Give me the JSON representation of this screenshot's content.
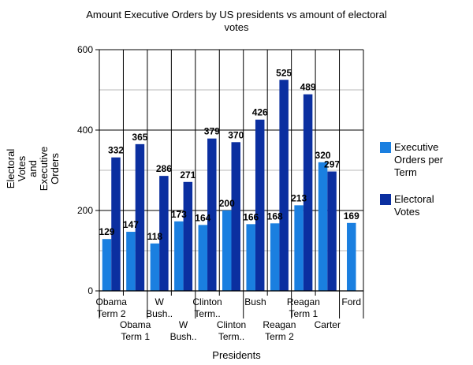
{
  "chart_data": {
    "type": "bar",
    "title_lines": [
      "Amount Executive Orders by US presidents vs amount of electoral",
      "votes"
    ],
    "xlabel": "Presidents",
    "ylabel_lines": [
      "Electoral",
      "Votes",
      "and",
      "Executive",
      "Orders"
    ],
    "ylim": [
      0,
      600
    ],
    "yticks": [
      "0",
      "200",
      "400",
      "600"
    ],
    "grid": true,
    "legend_position": "right",
    "categories": [
      [
        "Obama",
        "Term 2"
      ],
      [
        "Obama",
        "Term 1"
      ],
      [
        "W",
        "Bush.."
      ],
      [
        "W",
        "Bush.."
      ],
      [
        "Clinton",
        "Term.."
      ],
      [
        "Clinton",
        "Term.."
      ],
      [
        "Bush"
      ],
      [
        "Reagan",
        "Term 2"
      ],
      [
        "Reagan",
        "Term 1"
      ],
      [
        "Carter"
      ],
      [
        "Ford"
      ]
    ],
    "series": [
      {
        "name_lines": [
          "Executive",
          "Orders per",
          "Term"
        ],
        "color": "#1a7fe0",
        "values": [
          129,
          147,
          118,
          173,
          164,
          200,
          166,
          168,
          213,
          320,
          169
        ]
      },
      {
        "name_lines": [
          "Electoral",
          "Votes"
        ],
        "color": "#0b2fa0",
        "values": [
          332,
          365,
          286,
          271,
          379,
          370,
          426,
          525,
          489,
          297,
          null
        ]
      }
    ],
    "data_labels": [
      [
        "129",
        "147",
        "118",
        "173",
        "164",
        "200",
        "166",
        "168",
        "213",
        "320",
        "169"
      ],
      [
        "332",
        "365",
        "286",
        "271",
        "379",
        "370",
        "426",
        "525",
        "489",
        "297",
        ""
      ]
    ]
  }
}
